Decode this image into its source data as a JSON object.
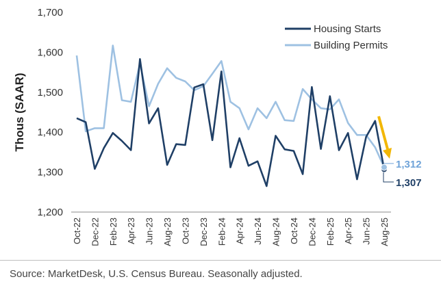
{
  "chart_data": {
    "type": "line",
    "ylabel": "Thous (SAAR)",
    "ylim": [
      1200,
      1700
    ],
    "yticks": [
      1200,
      1300,
      1400,
      1500,
      1600,
      1700
    ],
    "ytick_labels": [
      "1,200",
      "1,300",
      "1,400",
      "1,500",
      "1,600",
      "1,700"
    ],
    "x": [
      "Oct-22",
      "Nov-22",
      "Dec-22",
      "Jan-23",
      "Feb-23",
      "Mar-23",
      "Apr-23",
      "May-23",
      "Jun-23",
      "Jul-23",
      "Aug-23",
      "Sep-23",
      "Oct-23",
      "Nov-23",
      "Dec-23",
      "Jan-24",
      "Feb-24",
      "Mar-24",
      "Apr-24",
      "May-24",
      "Jun-24",
      "Jul-24",
      "Aug-24",
      "Sep-24",
      "Oct-24",
      "Nov-24",
      "Dec-24",
      "Jan-25",
      "Feb-25",
      "Mar-25",
      "Apr-25",
      "May-25",
      "Jun-25",
      "Jul-25",
      "Aug-25"
    ],
    "x_tick_labels": [
      "Oct-22",
      "Dec-22",
      "Feb-23",
      "Apr-23",
      "Jun-23",
      "Aug-23",
      "Oct-23",
      "Dec-23",
      "Feb-24",
      "Apr-24",
      "Jun-24",
      "Aug-24",
      "Oct-24",
      "Dec-24",
      "Feb-25",
      "Apr-25",
      "Jun-25",
      "Aug-25"
    ],
    "series": [
      {
        "name": "Housing Starts",
        "color": "#1f3f66",
        "values": [
          1435,
          1425,
          1308,
          1360,
          1398,
          1378,
          1355,
          1583,
          1422,
          1460,
          1318,
          1370,
          1368,
          1512,
          1520,
          1380,
          1552,
          1312,
          1385,
          1316,
          1327,
          1265,
          1391,
          1357,
          1353,
          1295,
          1513,
          1358,
          1490,
          1355,
          1398,
          1282,
          1388,
          1428,
          1307
        ]
      },
      {
        "name": "Building Permits",
        "color": "#9ec1e2",
        "values": [
          1592,
          1402,
          1410,
          1410,
          1617,
          1480,
          1476,
          1572,
          1465,
          1521,
          1560,
          1536,
          1527,
          1505,
          1515,
          1546,
          1578,
          1476,
          1460,
          1407,
          1460,
          1435,
          1476,
          1430,
          1428,
          1508,
          1482,
          1460,
          1457,
          1482,
          1423,
          1393,
          1393,
          1362,
          1312
        ]
      }
    ],
    "legend": [
      "Housing Starts",
      "Building Permits"
    ],
    "legend_position": "top-right",
    "annotations": [
      {
        "text": "1,312",
        "series": "Building Permits",
        "color": "#6fa3d8"
      },
      {
        "text": "1,307",
        "series": "Housing Starts",
        "color": "#1f3f66"
      }
    ],
    "arrow_color": "#f2b705"
  },
  "source": "Source: MarketDesk, U.S. Census Bureau. Seasonally adjusted."
}
